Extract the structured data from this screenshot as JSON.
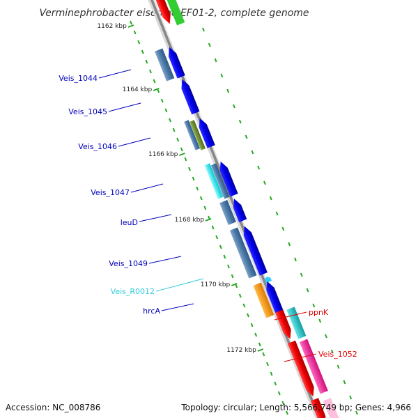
{
  "title": "Verminephrobacter eiseniae EF01-2, complete genome",
  "ticks": [
    {
      "label": "1162 kbp",
      "kbp": 1162
    },
    {
      "label": "1164 kbp",
      "kbp": 1164
    },
    {
      "label": "1166 kbp",
      "kbp": 1166
    },
    {
      "label": "1168 kbp",
      "kbp": 1168
    },
    {
      "label": "1170 kbp",
      "kbp": 1170
    },
    {
      "label": "1172 kbp",
      "kbp": 1172
    }
  ],
  "genes": [
    {
      "label": "Veis_1044",
      "color": "#0000bb"
    },
    {
      "label": "Veis_1045",
      "color": "#0000bb"
    },
    {
      "label": "Veis_1046",
      "color": "#0000bb"
    },
    {
      "label": "Veis_1047",
      "color": "#0000bb"
    },
    {
      "label": "leuD",
      "color": "#0000bb"
    },
    {
      "label": "Veis_1049",
      "color": "#0000bb"
    },
    {
      "label": "Veis_R0012",
      "color": "#33ccdd"
    },
    {
      "label": "hrcA",
      "color": "#0000bb"
    },
    {
      "label": "ppnK",
      "color": "#dd0000"
    },
    {
      "label": "Veis_1052",
      "color": "#dd0000"
    }
  ],
  "colors": {
    "cds": "#0000ee",
    "cog_blue": "#4a78a8",
    "cog_olive": "#6b8a2a",
    "cog_cyan": "#00e5ee",
    "cog_orange": "#ff9900",
    "cog_teal": "#22c8cc",
    "cog_pink": "#ff2299",
    "reverse_cds": "#ee0000",
    "backbone": "#888888"
  },
  "footer": {
    "accession": "Accession: NC_008786",
    "stats": "Topology: circular; Length: 5,566,749 bp; Genes: 4,966"
  }
}
